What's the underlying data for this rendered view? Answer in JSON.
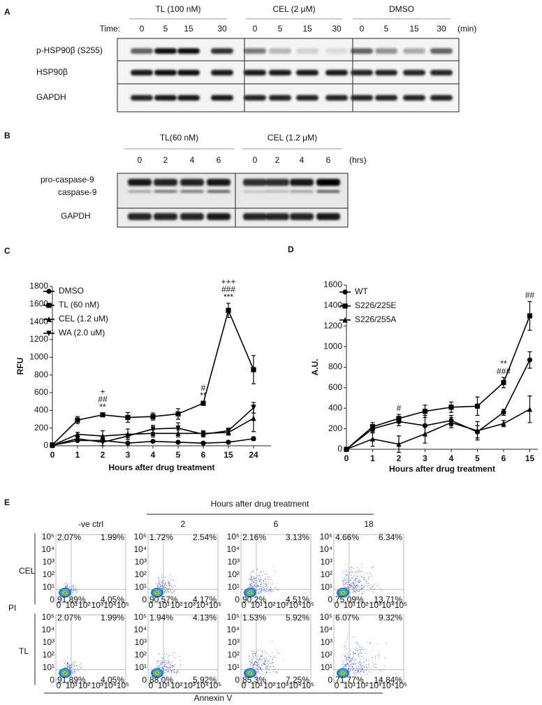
{
  "panel_a": {
    "label": "A",
    "groups": [
      "TL (100 nM)",
      "CEL (2 μM)",
      "DMSO"
    ],
    "time_label": "Time:",
    "times": [
      [
        "0",
        "5",
        "15",
        "30"
      ],
      [
        "0",
        "5",
        "15",
        "30"
      ],
      [
        "0",
        "5",
        "15",
        "30"
      ]
    ],
    "unit": "(min)",
    "rows": [
      "p-HSP90β (S255)",
      "HSP90β",
      "GAPDH"
    ]
  },
  "panel_b": {
    "label": "B",
    "groups": [
      "TL(60 nM)",
      "CEL (1.2 μM)"
    ],
    "times": [
      [
        "0",
        "2",
        "4",
        "6"
      ],
      [
        "0",
        "2",
        "4",
        "6"
      ]
    ],
    "unit": "(hrs)",
    "rows": [
      "pro-caspase-9",
      "caspase-9",
      "GAPDH"
    ]
  },
  "chart_data": [
    {
      "panel_label": "C",
      "type": "line",
      "ylabel": "RFU",
      "xlabel": "Hours after drug treatment",
      "categories": [
        "0",
        "1",
        "2",
        "3",
        "4",
        "5",
        "6",
        "15",
        "24"
      ],
      "ylim": [
        0,
        1800
      ],
      "yticks": [
        0,
        200,
        400,
        600,
        800,
        1000,
        1200,
        1400,
        1600,
        1800
      ],
      "legend": "upper left",
      "series": [
        {
          "name": "DMSO",
          "color": "#000000",
          "marker": "circle",
          "values": [
            5,
            60,
            60,
            30,
            50,
            40,
            30,
            40,
            80
          ],
          "errors": [
            5,
            10,
            10,
            10,
            10,
            10,
            10,
            15,
            20
          ]
        },
        {
          "name": "TL (60 nM)",
          "color": "#000000",
          "marker": "square",
          "values": [
            10,
            290,
            350,
            320,
            330,
            360,
            480,
            1530,
            860
          ],
          "errors": [
            5,
            40,
            20,
            55,
            40,
            60,
            20,
            80,
            160
          ]
        },
        {
          "name": "CEL (1.2 uM)",
          "color": "#000000",
          "marker": "triangle-up",
          "values": [
            5,
            130,
            110,
            130,
            140,
            140,
            140,
            150,
            310
          ],
          "errors": [
            5,
            20,
            60,
            60,
            40,
            40,
            30,
            30,
            150
          ]
        },
        {
          "name": "WA (2.0 uM)",
          "color": "#000000",
          "marker": "triangle-down",
          "values": [
            5,
            80,
            40,
            110,
            190,
            200,
            130,
            170,
            430
          ],
          "errors": [
            5,
            20,
            40,
            20,
            40,
            60,
            30,
            30,
            60
          ]
        }
      ],
      "annotations": [
        {
          "category": "2",
          "texts": [
            "+",
            "##",
            "**"
          ]
        },
        {
          "category": "6",
          "texts": [
            "#",
            "**"
          ]
        },
        {
          "category": "15",
          "texts": [
            "+++",
            "###",
            "***"
          ]
        }
      ]
    },
    {
      "panel_label": "D",
      "type": "line",
      "ylabel": "A.U.",
      "xlabel": "Hours after drug treatment",
      "categories": [
        "0",
        "1",
        "2",
        "3",
        "4",
        "5",
        "6",
        "15"
      ],
      "ylim": [
        0,
        1600
      ],
      "yticks": [
        0,
        200,
        400,
        600,
        800,
        1000,
        1200,
        1400,
        1600
      ],
      "legend": "upper left",
      "series": [
        {
          "name": "WT",
          "color": "#000000",
          "marker": "circle",
          "values": [
            0,
            200,
            270,
            230,
            280,
            170,
            360,
            870
          ],
          "errors": [
            0,
            40,
            40,
            100,
            50,
            60,
            30,
            80
          ]
        },
        {
          "name": "S226/225E",
          "color": "#000000",
          "marker": "square",
          "values": [
            0,
            220,
            300,
            370,
            410,
            420,
            650,
            1300
          ],
          "errors": [
            0,
            40,
            40,
            60,
            50,
            90,
            50,
            140
          ]
        },
        {
          "name": "S226/255A",
          "color": "#000000",
          "marker": "triangle-up",
          "values": [
            0,
            100,
            50,
            150,
            260,
            180,
            250,
            390
          ],
          "errors": [
            0,
            70,
            80,
            90,
            50,
            90,
            30,
            130
          ]
        }
      ],
      "annotations": [
        {
          "category": "2",
          "texts": [
            "#"
          ]
        },
        {
          "category": "6",
          "texts": [
            "**",
            "###"
          ]
        },
        {
          "category": "15",
          "texts": [
            "##"
          ]
        }
      ]
    }
  ],
  "panel_e": {
    "label": "E",
    "title": "Hours after drug treatment",
    "columns": [
      "-ve ctrl",
      "2",
      "6",
      "18"
    ],
    "y_label": "PI",
    "x_label": "Annexin V",
    "axis_ticks": [
      "0",
      "10¹",
      "10²",
      "10³",
      "10⁴",
      "10⁵"
    ],
    "rows": [
      {
        "label": "CEL",
        "plots": [
          {
            "ul": "2.07%",
            "ur": "1.99%",
            "ll": "91.89%",
            "lr": "4.05%"
          },
          {
            "ul": "1.72%",
            "ur": "2.54%",
            "ll": "90.57%",
            "lr": "4.17%"
          },
          {
            "ul": "2.16%",
            "ur": "3.13%",
            "ll": "90.2%",
            "lr": "4.51%"
          },
          {
            "ul": "4.66%",
            "ur": "6.34%",
            "ll": "75.09%",
            "lr": "13.71%"
          }
        ]
      },
      {
        "label": "TL",
        "plots": [
          {
            "ul": "2.07%",
            "ur": "1.99%",
            "ll": "91.89%",
            "lr": "4.05%"
          },
          {
            "ul": "1.94%",
            "ur": "4.13%",
            "ll": "88.0%",
            "lr": "5.92%"
          },
          {
            "ul": "1.53%",
            "ur": "5.92%",
            "ll": "85.3%",
            "lr": "7.25%"
          },
          {
            "ul": "6.07%",
            "ur": "9.32%",
            "ll": "71.77%",
            "lr": "14.84%"
          }
        ]
      }
    ]
  }
}
